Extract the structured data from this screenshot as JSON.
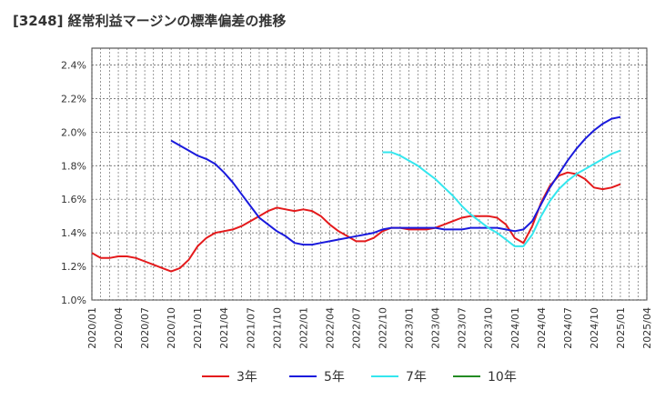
{
  "chart_data": {
    "type": "line",
    "title": "[3248]  経常利益マージンの標準偏差の推移",
    "xlabel": "",
    "ylabel": "",
    "ylim": [
      1.0,
      2.5
    ],
    "y_ticks": [
      "1.0%",
      "1.2%",
      "1.4%",
      "1.6%",
      "1.8%",
      "2.0%",
      "2.2%",
      "2.4%"
    ],
    "y_tick_values": [
      1.0,
      1.2,
      1.4,
      1.6,
      1.8,
      2.0,
      2.2,
      2.4
    ],
    "x_ticks": [
      "2020/01",
      "2020/04",
      "2020/07",
      "2020/10",
      "2021/01",
      "2021/04",
      "2021/07",
      "2021/10",
      "2022/01",
      "2022/04",
      "2022/07",
      "2022/10",
      "2023/01",
      "2023/04",
      "2023/07",
      "2023/10",
      "2024/01",
      "2024/04",
      "2024/07",
      "2024/10",
      "2025/01",
      "2025/04"
    ],
    "grid": true,
    "legend_position": "bottom",
    "series": [
      {
        "name": "3年",
        "color": "#e41a1c",
        "x": [
          "2020/01",
          "2020/02",
          "2020/03",
          "2020/04",
          "2020/05",
          "2020/06",
          "2020/07",
          "2020/08",
          "2020/09",
          "2020/10",
          "2020/11",
          "2020/12",
          "2021/01",
          "2021/02",
          "2021/03",
          "2021/04",
          "2021/05",
          "2021/06",
          "2021/07",
          "2021/08",
          "2021/09",
          "2021/10",
          "2021/11",
          "2021/12",
          "2022/01",
          "2022/02",
          "2022/03",
          "2022/04",
          "2022/05",
          "2022/06",
          "2022/07",
          "2022/08",
          "2022/09",
          "2022/10",
          "2022/11",
          "2022/12",
          "2023/01",
          "2023/02",
          "2023/03",
          "2023/04",
          "2023/05",
          "2023/06",
          "2023/07",
          "2023/08",
          "2023/09",
          "2023/10",
          "2023/11",
          "2023/12",
          "2024/01",
          "2024/02",
          "2024/03",
          "2024/04",
          "2024/05",
          "2024/06",
          "2024/07",
          "2024/08",
          "2024/09",
          "2024/10",
          "2024/11",
          "2024/12",
          "2025/01"
        ],
        "values": [
          1.28,
          1.25,
          1.25,
          1.26,
          1.26,
          1.25,
          1.23,
          1.21,
          1.19,
          1.17,
          1.19,
          1.24,
          1.32,
          1.37,
          1.4,
          1.41,
          1.42,
          1.44,
          1.47,
          1.5,
          1.53,
          1.55,
          1.54,
          1.53,
          1.54,
          1.53,
          1.5,
          1.45,
          1.41,
          1.38,
          1.35,
          1.35,
          1.37,
          1.41,
          1.43,
          1.43,
          1.42,
          1.42,
          1.42,
          1.43,
          1.45,
          1.47,
          1.49,
          1.5,
          1.5,
          1.5,
          1.49,
          1.45,
          1.37,
          1.34,
          1.44,
          1.58,
          1.68,
          1.74,
          1.76,
          1.75,
          1.72,
          1.67,
          1.66,
          1.67,
          1.69
        ]
      },
      {
        "name": "5年",
        "color": "#1a1adc",
        "x": [
          "2020/10",
          "2020/11",
          "2020/12",
          "2021/01",
          "2021/02",
          "2021/03",
          "2021/04",
          "2021/05",
          "2021/06",
          "2021/07",
          "2021/08",
          "2021/09",
          "2021/10",
          "2021/11",
          "2021/12",
          "2022/01",
          "2022/02",
          "2022/03",
          "2022/04",
          "2022/05",
          "2022/06",
          "2022/07",
          "2022/08",
          "2022/09",
          "2022/10",
          "2022/11",
          "2022/12",
          "2023/01",
          "2023/02",
          "2023/03",
          "2023/04",
          "2023/05",
          "2023/06",
          "2023/07",
          "2023/08",
          "2023/09",
          "2023/10",
          "2023/11",
          "2023/12",
          "2024/01",
          "2024/02",
          "2024/03",
          "2024/04",
          "2024/05",
          "2024/06",
          "2024/07",
          "2024/08",
          "2024/09",
          "2024/10",
          "2024/11",
          "2024/12",
          "2025/01"
        ],
        "values": [
          1.95,
          1.92,
          1.89,
          1.86,
          1.84,
          1.81,
          1.76,
          1.7,
          1.63,
          1.56,
          1.49,
          1.45,
          1.41,
          1.38,
          1.34,
          1.33,
          1.33,
          1.34,
          1.35,
          1.36,
          1.37,
          1.38,
          1.39,
          1.4,
          1.42,
          1.43,
          1.43,
          1.43,
          1.43,
          1.43,
          1.43,
          1.42,
          1.42,
          1.42,
          1.43,
          1.43,
          1.43,
          1.43,
          1.42,
          1.41,
          1.42,
          1.47,
          1.57,
          1.67,
          1.75,
          1.83,
          1.9,
          1.96,
          2.01,
          2.05,
          2.08,
          2.09
        ]
      },
      {
        "name": "7年",
        "color": "#33e6ee",
        "x": [
          "2022/10",
          "2022/11",
          "2022/12",
          "2023/01",
          "2023/02",
          "2023/03",
          "2023/04",
          "2023/05",
          "2023/06",
          "2023/07",
          "2023/08",
          "2023/09",
          "2023/10",
          "2023/11",
          "2023/12",
          "2024/01",
          "2024/02",
          "2024/03",
          "2024/04",
          "2024/05",
          "2024/06",
          "2024/07",
          "2024/08",
          "2024/09",
          "2024/10",
          "2024/11",
          "2024/12",
          "2025/01"
        ],
        "values": [
          1.88,
          1.88,
          1.86,
          1.83,
          1.8,
          1.76,
          1.72,
          1.67,
          1.62,
          1.56,
          1.51,
          1.47,
          1.43,
          1.4,
          1.36,
          1.32,
          1.32,
          1.39,
          1.5,
          1.59,
          1.66,
          1.71,
          1.75,
          1.78,
          1.81,
          1.84,
          1.87,
          1.89
        ]
      },
      {
        "name": "10年",
        "color": "#228b22",
        "x": [],
        "values": []
      }
    ]
  }
}
